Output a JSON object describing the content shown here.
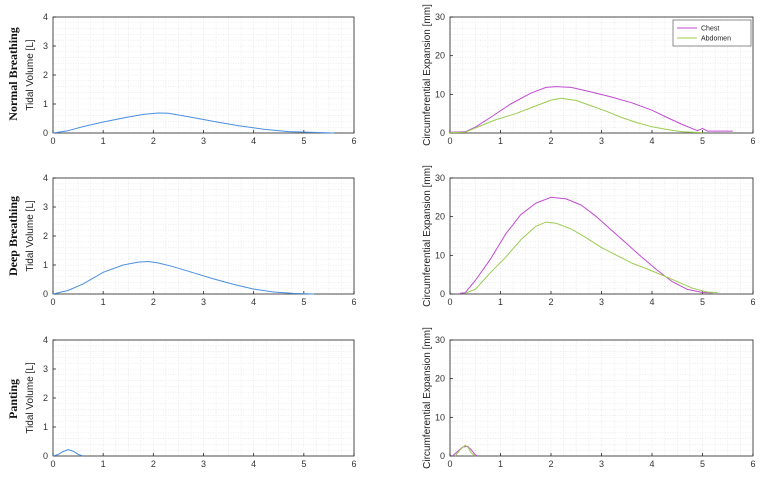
{
  "colors": {
    "tidal": "#4a90e2",
    "chest": "#c04bd1",
    "abdomen": "#9ccc50",
    "grid": "#e2e2e2",
    "axis": "#222222"
  },
  "rows": [
    {
      "label": "Normal Breathing"
    },
    {
      "label": "Deep Breathing"
    },
    {
      "label": "Panting"
    }
  ],
  "chart_data": [
    {
      "type": "line",
      "ylabel": "Tidal Volume [L]",
      "xlim": [
        0,
        6
      ],
      "ylim": [
        0,
        4
      ],
      "xticks": [
        0,
        1,
        2,
        3,
        4,
        5,
        6
      ],
      "yticks": [
        0,
        1,
        2,
        3,
        4
      ],
      "grid": true,
      "series": [
        {
          "color": "tidal",
          "points": [
            [
              0,
              0
            ],
            [
              0.3,
              0.08
            ],
            [
              0.6,
              0.22
            ],
            [
              1,
              0.38
            ],
            [
              1.5,
              0.55
            ],
            [
              1.8,
              0.64
            ],
            [
              2.1,
              0.69
            ],
            [
              2.3,
              0.68
            ],
            [
              2.7,
              0.56
            ],
            [
              3.2,
              0.4
            ],
            [
              3.7,
              0.25
            ],
            [
              4.2,
              0.13
            ],
            [
              4.7,
              0.05
            ],
            [
              5.2,
              0.02
            ],
            [
              5.6,
              0.0
            ]
          ]
        }
      ]
    },
    {
      "type": "line",
      "ylabel": "Circumferential Expansion [mm]",
      "xlim": [
        0,
        6
      ],
      "ylim": [
        0,
        30
      ],
      "xticks": [
        0,
        1,
        2,
        3,
        4,
        5,
        6
      ],
      "yticks": [
        0,
        10,
        20,
        30
      ],
      "grid": true,
      "legend": "top-right",
      "series": [
        {
          "name": "Chest",
          "color": "chest",
          "points": [
            [
              0,
              0.2
            ],
            [
              0.3,
              0.3
            ],
            [
              0.5,
              1.5
            ],
            [
              0.8,
              4
            ],
            [
              1.2,
              7.5
            ],
            [
              1.6,
              10.3
            ],
            [
              1.9,
              11.8
            ],
            [
              2.1,
              12
            ],
            [
              2.4,
              11.8
            ],
            [
              2.8,
              10.6
            ],
            [
              3.2,
              9.3
            ],
            [
              3.6,
              7.8
            ],
            [
              4,
              5.9
            ],
            [
              4.3,
              4
            ],
            [
              4.6,
              2.2
            ],
            [
              4.9,
              0.6
            ],
            [
              5,
              1.2
            ],
            [
              5.1,
              0.5
            ],
            [
              5.6,
              0.5
            ]
          ]
        },
        {
          "name": "Abdomen",
          "color": "abdomen",
          "points": [
            [
              0,
              0.1
            ],
            [
              0.3,
              0.2
            ],
            [
              0.6,
              1.8
            ],
            [
              0.9,
              3.4
            ],
            [
              1.3,
              5
            ],
            [
              1.7,
              7
            ],
            [
              2,
              8.5
            ],
            [
              2.2,
              9
            ],
            [
              2.5,
              8.4
            ],
            [
              2.8,
              7
            ],
            [
              3.1,
              5.6
            ],
            [
              3.4,
              4
            ],
            [
              3.7,
              2.7
            ],
            [
              4,
              1.6
            ],
            [
              4.3,
              0.9
            ],
            [
              4.6,
              0.3
            ],
            [
              5,
              0.1
            ]
          ]
        }
      ]
    },
    {
      "type": "line",
      "ylabel": "Tidal Volume [L]",
      "xlim": [
        0,
        6
      ],
      "ylim": [
        0,
        4
      ],
      "xticks": [
        0,
        1,
        2,
        3,
        4,
        5,
        6
      ],
      "yticks": [
        0,
        1,
        2,
        3,
        4
      ],
      "grid": true,
      "series": [
        {
          "color": "tidal",
          "points": [
            [
              0,
              0
            ],
            [
              0.3,
              0.12
            ],
            [
              0.6,
              0.35
            ],
            [
              1,
              0.75
            ],
            [
              1.4,
              1.0
            ],
            [
              1.7,
              1.1
            ],
            [
              1.9,
              1.12
            ],
            [
              2.1,
              1.07
            ],
            [
              2.4,
              0.94
            ],
            [
              2.8,
              0.73
            ],
            [
              3.2,
              0.52
            ],
            [
              3.6,
              0.33
            ],
            [
              4,
              0.17
            ],
            [
              4.4,
              0.07
            ],
            [
              4.8,
              0.02
            ],
            [
              5.2,
              0.0
            ]
          ]
        }
      ]
    },
    {
      "type": "line",
      "ylabel": "Circumferential Expansion [mm]",
      "xlim": [
        0,
        6
      ],
      "ylim": [
        0,
        30
      ],
      "xticks": [
        0,
        1,
        2,
        3,
        4,
        5,
        6
      ],
      "yticks": [
        0,
        10,
        20,
        30
      ],
      "grid": true,
      "series": [
        {
          "name": "Chest",
          "color": "chest",
          "points": [
            [
              0.2,
              0.2
            ],
            [
              0.3,
              0.3
            ],
            [
              0.5,
              3.5
            ],
            [
              0.8,
              9
            ],
            [
              1.1,
              15.5
            ],
            [
              1.4,
              20.5
            ],
            [
              1.7,
              23.5
            ],
            [
              2,
              25
            ],
            [
              2.3,
              24.6
            ],
            [
              2.6,
              23
            ],
            [
              2.9,
              20
            ],
            [
              3.2,
              16.5
            ],
            [
              3.5,
              13
            ],
            [
              3.8,
              9.5
            ],
            [
              4.1,
              6.2
            ],
            [
              4.4,
              3.2
            ],
            [
              4.7,
              1.2
            ],
            [
              5,
              0.4
            ],
            [
              5.2,
              0.3
            ]
          ]
        },
        {
          "name": "Abdomen",
          "color": "abdomen",
          "points": [
            [
              0.3,
              0.2
            ],
            [
              0.5,
              1.2
            ],
            [
              0.8,
              5.5
            ],
            [
              1.1,
              9.5
            ],
            [
              1.4,
              14
            ],
            [
              1.7,
              17.5
            ],
            [
              1.9,
              18.6
            ],
            [
              2.1,
              18.3
            ],
            [
              2.4,
              16.8
            ],
            [
              2.7,
              14.5
            ],
            [
              3,
              12
            ],
            [
              3.3,
              10
            ],
            [
              3.6,
              8
            ],
            [
              3.9,
              6.5
            ],
            [
              4.2,
              4.9
            ],
            [
              4.5,
              3.2
            ],
            [
              4.8,
              1.5
            ],
            [
              5.1,
              0.5
            ],
            [
              5.3,
              0.4
            ]
          ]
        }
      ]
    },
    {
      "type": "line",
      "ylabel": "Tidal Volume [L]",
      "xlim": [
        0,
        6
      ],
      "ylim": [
        0,
        4
      ],
      "xticks": [
        0,
        1,
        2,
        3,
        4,
        5,
        6
      ],
      "yticks": [
        0,
        1,
        2,
        3,
        4
      ],
      "grid": true,
      "series": [
        {
          "color": "tidal",
          "points": [
            [
              0,
              0
            ],
            [
              0.1,
              0.05
            ],
            [
              0.2,
              0.15
            ],
            [
              0.3,
              0.22
            ],
            [
              0.4,
              0.17
            ],
            [
              0.5,
              0.06
            ],
            [
              0.6,
              0.0
            ]
          ]
        }
      ]
    },
    {
      "type": "line",
      "ylabel": "Circumferential Expansion [mm]",
      "xlim": [
        0,
        6
      ],
      "ylim": [
        0,
        30
      ],
      "xticks": [
        0,
        1,
        2,
        3,
        4,
        5,
        6
      ],
      "yticks": [
        0,
        10,
        20,
        30
      ],
      "grid": true,
      "series": [
        {
          "name": "Chest",
          "color": "chest",
          "points": [
            [
              0.05,
              0
            ],
            [
              0.15,
              1.2
            ],
            [
              0.25,
              2.3
            ],
            [
              0.35,
              2.5
            ],
            [
              0.42,
              1.6
            ],
            [
              0.5,
              0.3
            ],
            [
              0.55,
              0.0
            ]
          ]
        },
        {
          "name": "Abdomen",
          "color": "abdomen",
          "points": [
            [
              0.1,
              0
            ],
            [
              0.2,
              1.6
            ],
            [
              0.3,
              2.8
            ],
            [
              0.36,
              2.2
            ],
            [
              0.42,
              0.8
            ],
            [
              0.5,
              0.0
            ]
          ]
        }
      ]
    }
  ]
}
